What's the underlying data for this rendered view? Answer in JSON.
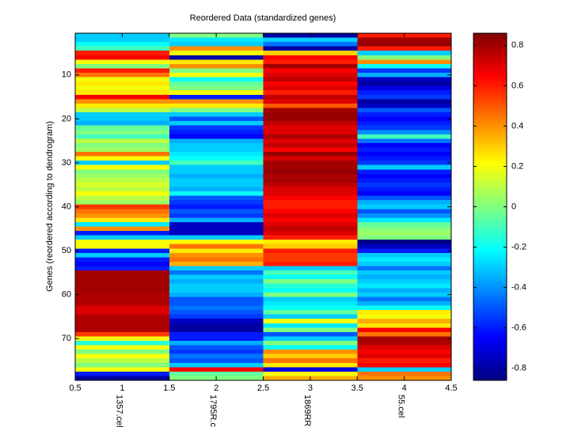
{
  "chart_data": {
    "type": "heatmap",
    "title": "Reordered Data (standardized genes)",
    "ylabel": "Genes (reordered according to dendrogram)",
    "colormap": "jet",
    "xlim": [
      0.5,
      4.5
    ],
    "xticks": [
      0.5,
      1,
      1.5,
      2,
      2.5,
      3,
      3.5,
      4,
      4.5
    ],
    "ylim": [
      0.5,
      79.5
    ],
    "y_reversed": true,
    "yticks": [
      10,
      20,
      30,
      40,
      50,
      60,
      70
    ],
    "clim": [
      -0.86,
      0.86
    ],
    "cticks": [
      -0.8,
      -0.6,
      -0.4,
      -0.2,
      0,
      0.2,
      0.4,
      0.6,
      0.8
    ],
    "series": [
      {
        "name": "1357.cel",
        "values": [
          -0.3,
          -0.3,
          -0.2,
          -0.1,
          0.6,
          0.65,
          0.2,
          0,
          0.6,
          0.45,
          0.2,
          0.25,
          0.2,
          0.25,
          0.65,
          0.4,
          0.25,
          0.1,
          -0.3,
          -0.3,
          -0.35,
          -0.05,
          0,
          -0.1,
          0.1,
          0,
          0.05,
          0.45,
          0.2,
          -0.3,
          0.2,
          0,
          0.05,
          0.1,
          0.15,
          0.1,
          0.2,
          0.1,
          0.05,
          0.55,
          0.45,
          0.4,
          0.25,
          -0.25,
          0.4,
          -0.6,
          -0.3,
          0.2,
          0.2,
          -0.6,
          -0.3,
          -0.6,
          -0.65,
          -0.6,
          0.8,
          0.8,
          0.8,
          0.8,
          0.8,
          0.78,
          0.78,
          0.78,
          0.7,
          0.7,
          0.78,
          0.78,
          0.78,
          0.78,
          0.55,
          0.2,
          -0.15,
          0.2,
          0,
          0.2,
          0.1,
          0,
          0.2,
          -0.6,
          -0.8
        ]
      },
      {
        "name": "1795R.c",
        "values": [
          0,
          -0.25,
          -0.3,
          0.4,
          0.2,
          -0.8,
          0.25,
          0.4,
          0,
          0.2,
          -0.2,
          -0.05,
          0,
          0.2,
          -0.6,
          0.4,
          0.25,
          0,
          -0.3,
          -0.5,
          -0.3,
          -0.55,
          -0.6,
          -0.65,
          -0.35,
          -0.3,
          -0.3,
          -0.25,
          -0.2,
          -0.1,
          -0.3,
          -0.3,
          -0.35,
          -0.3,
          -0.3,
          -0.35,
          -0.2,
          -0.5,
          -0.55,
          -0.6,
          -0.5,
          -0.55,
          -0.35,
          -0.75,
          -0.75,
          -0.75,
          -0.3,
          0.2,
          0.45,
          0.25,
          0.4,
          0.45,
          0.35,
          -0.3,
          -0.45,
          -0.3,
          -0.35,
          -0.3,
          -0.3,
          -0.35,
          -0.5,
          -0.5,
          -0.45,
          -0.5,
          -0.55,
          -0.75,
          -0.8,
          -0.8,
          -0.6,
          -0.6,
          -0.35,
          -0.5,
          -0.55,
          -0.45,
          -0.5,
          -0.3,
          0.65,
          -0.05,
          0
        ]
      },
      {
        "name": "1869RR",
        "values": [
          -0.8,
          -0.3,
          -0.45,
          -0.8,
          0.3,
          0.65,
          0.6,
          0.8,
          0.65,
          0.7,
          0.75,
          0.65,
          0.7,
          0.6,
          0.75,
          0.7,
          0.5,
          0.8,
          0.82,
          0.82,
          0.75,
          0.7,
          0.7,
          0.78,
          0.7,
          0.75,
          0.65,
          0.82,
          0.72,
          0.8,
          0.8,
          0.82,
          0.78,
          0.8,
          0.75,
          0.7,
          0.7,
          0.65,
          0.6,
          0.6,
          0.65,
          0.7,
          0.65,
          0.7,
          0.75,
          0.7,
          0.6,
          0.25,
          0.3,
          0.6,
          0.55,
          0.55,
          0.6,
          -0.3,
          -0.1,
          -0.2,
          0,
          -0.15,
          -0.2,
          0,
          -0.3,
          -0.25,
          -0.2,
          -0.05,
          -0.3,
          0.2,
          -0.25,
          0,
          -0.5,
          -0.3,
          0,
          -0.2,
          0.4,
          0.3,
          0.45,
          0.25,
          -0.7,
          0.2,
          0.35
        ]
      },
      {
        "name": "55.cel",
        "values": [
          0.6,
          0.8,
          0.82,
          0.6,
          -0.3,
          0,
          0.4,
          -0.2,
          -0.55,
          -0.35,
          -0.75,
          -0.8,
          -0.7,
          -0.6,
          -0.55,
          -0.8,
          -0.75,
          -0.5,
          -0.6,
          -0.65,
          -0.6,
          -0.55,
          -0.4,
          -0.1,
          -0.45,
          -0.65,
          -0.6,
          -0.65,
          -0.6,
          -0.55,
          -0.3,
          -0.6,
          -0.65,
          -0.6,
          -0.55,
          -0.6,
          -0.65,
          -0.5,
          -0.35,
          -0.3,
          -0.5,
          -0.4,
          -0.25,
          -0.05,
          0,
          0.05,
          0,
          -0.85,
          -0.75,
          -0.6,
          -0.3,
          -0.25,
          -0.3,
          -0.45,
          -0.3,
          -0.35,
          -0.3,
          -0.25,
          -0.35,
          -0.3,
          -0.45,
          -0.35,
          -0.2,
          0.25,
          0.2,
          0.35,
          0.25,
          0.65,
          0.45,
          0.8,
          0.78,
          0.7,
          0.65,
          0.7,
          0.6,
          0.65,
          -0.3,
          0.45,
          0.4
        ]
      }
    ]
  }
}
